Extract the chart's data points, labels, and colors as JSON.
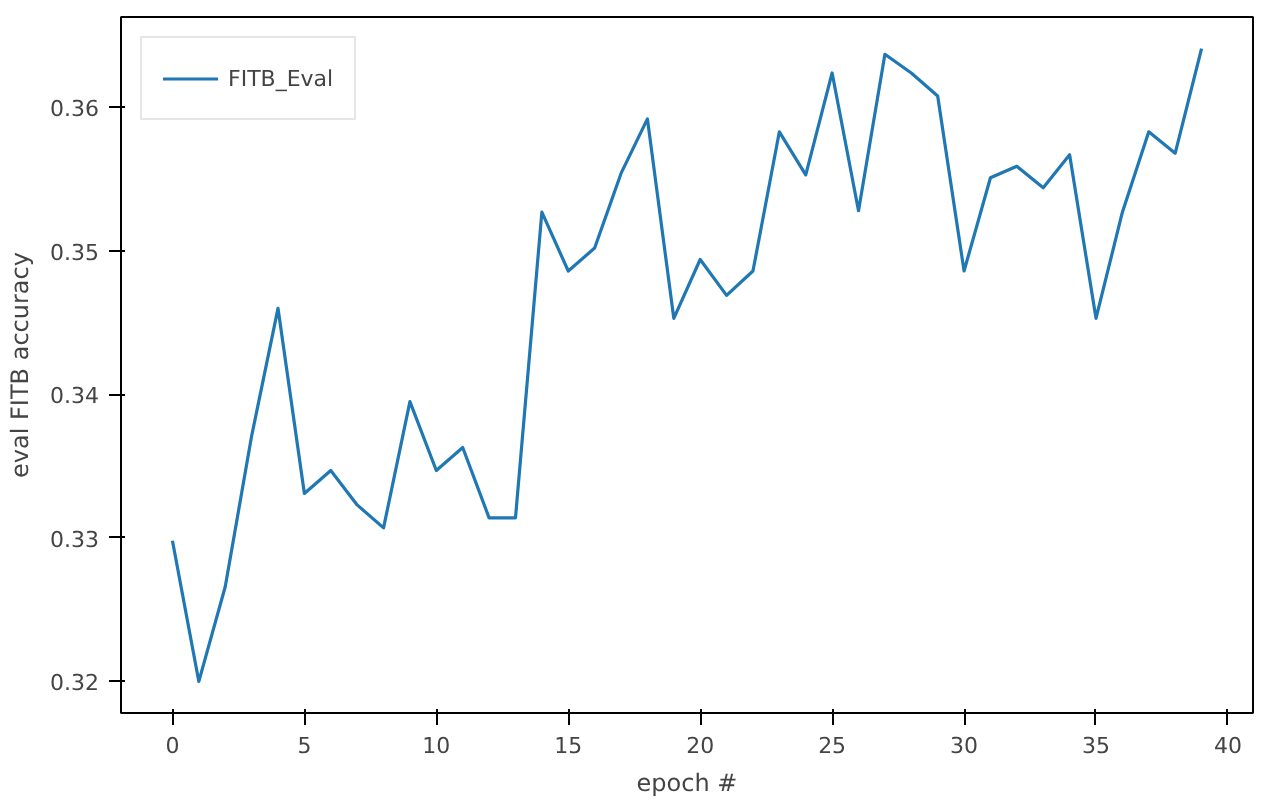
{
  "chart_data": {
    "type": "line",
    "xlabel": "epoch #",
    "ylabel": "eval FITB accuracy",
    "x": [
      0,
      1,
      2,
      3,
      4,
      5,
      6,
      7,
      8,
      9,
      10,
      11,
      12,
      13,
      14,
      15,
      16,
      17,
      18,
      19,
      20,
      21,
      22,
      23,
      24,
      25,
      26,
      27,
      28,
      29,
      30,
      31,
      32,
      33,
      34,
      35,
      36,
      37,
      38,
      39
    ],
    "series": [
      {
        "name": "FITB_Eval",
        "color": "#1f77b4",
        "values": [
          0.3298,
          0.32,
          0.3266,
          0.3371,
          0.346,
          0.3331,
          0.3347,
          0.3323,
          0.3307,
          0.3395,
          0.3347,
          0.3363,
          0.3314,
          0.3314,
          0.3527,
          0.3486,
          0.3502,
          0.3554,
          0.3592,
          0.3453,
          0.3494,
          0.3469,
          0.3486,
          0.3583,
          0.3553,
          0.3624,
          0.3528,
          0.3637,
          0.3624,
          0.3608,
          0.3486,
          0.3551,
          0.3559,
          0.3544,
          0.3567,
          0.3453,
          0.3527,
          0.3583,
          0.3568,
          0.3641
        ]
      }
    ],
    "xlim": [
      -1.95,
      40.95
    ],
    "ylim": [
      0.3178,
      0.3663
    ],
    "xticks": [
      0,
      5,
      10,
      15,
      20,
      25,
      30,
      35,
      40
    ],
    "yticks": [
      0.32,
      0.33,
      0.34,
      0.35,
      0.36
    ],
    "grid": false,
    "legend": "top left",
    "line_style": "solid",
    "marker": "none"
  }
}
